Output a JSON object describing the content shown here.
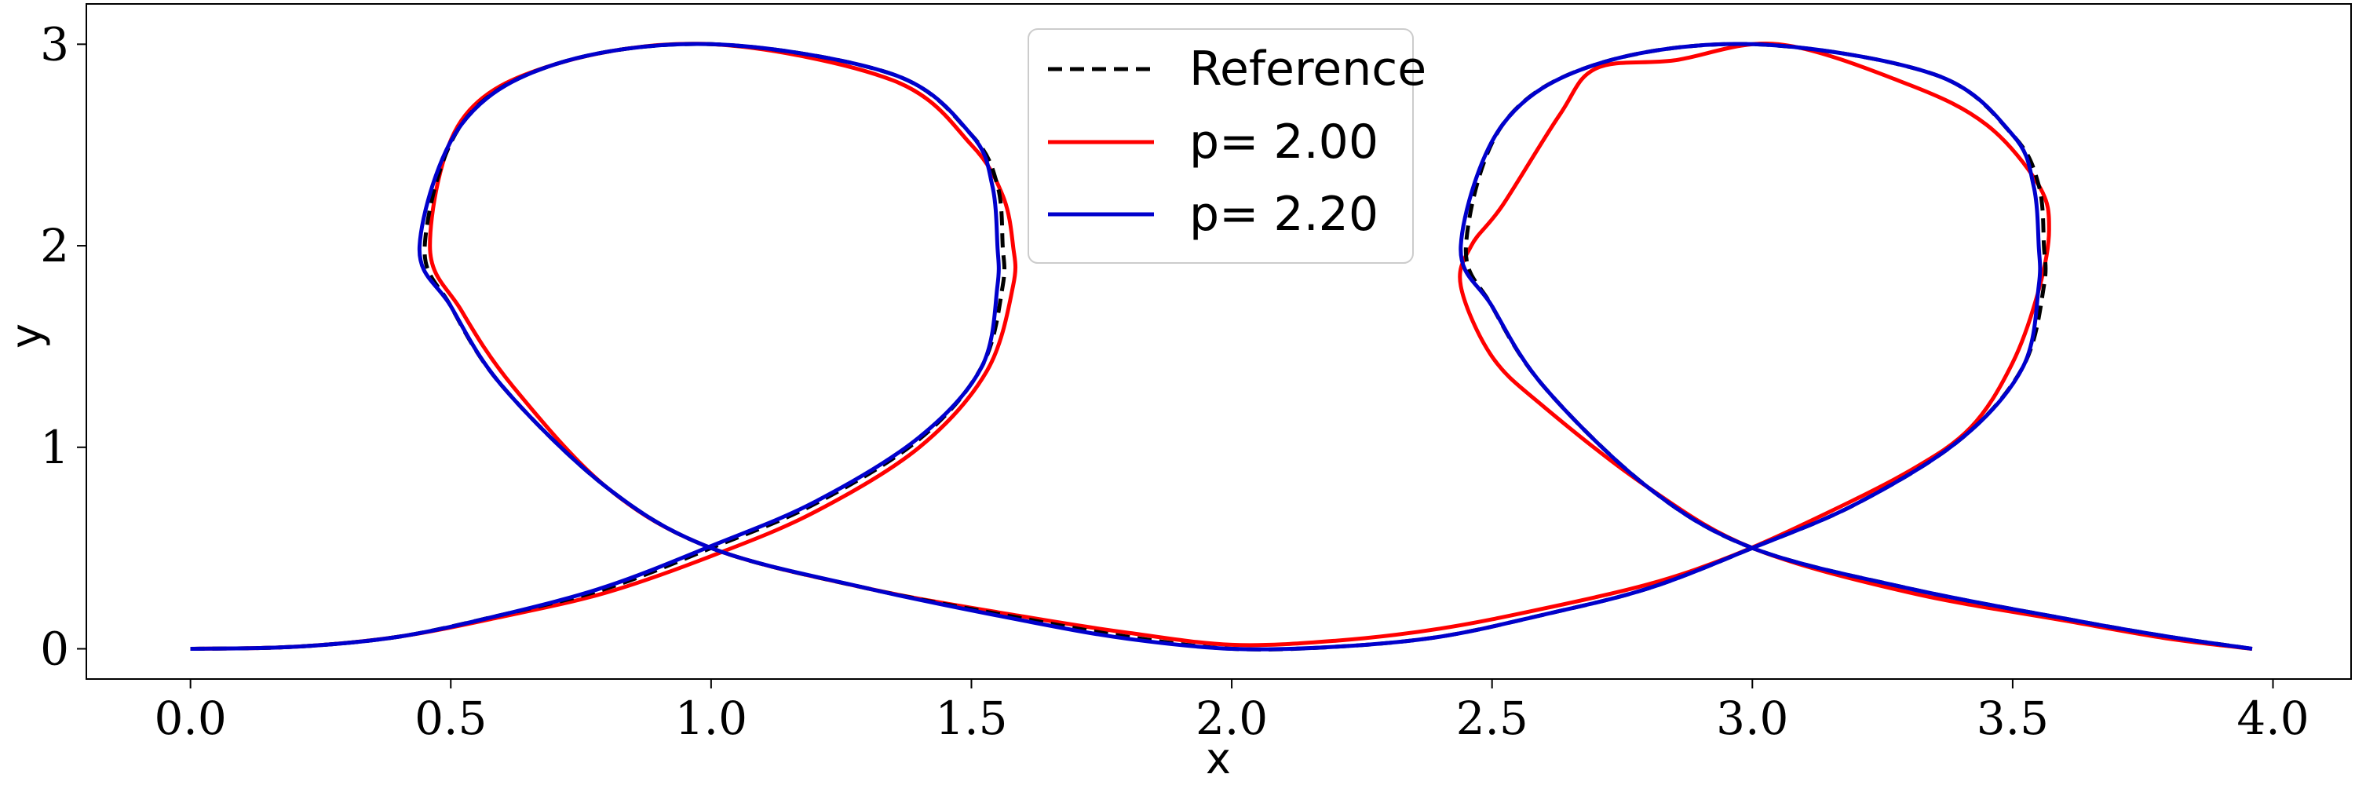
{
  "chart_data": {
    "type": "line",
    "title": "",
    "xlabel": "x",
    "ylabel": "y",
    "xlim": [
      -0.2,
      4.15
    ],
    "ylim": [
      -0.15,
      3.2
    ],
    "xticks": [
      "0.0",
      "0.5",
      "1.0",
      "1.5",
      "2.0",
      "2.5",
      "3.0",
      "3.5",
      "4.0"
    ],
    "yticks": [
      "0",
      "1",
      "2",
      "3"
    ],
    "grid": false,
    "legend_position": "top-center",
    "series": [
      {
        "name": "Reference",
        "color": "#000000",
        "style": "dashed",
        "points": [
          [
            0.0,
            0.0
          ],
          [
            0.2,
            0.01
          ],
          [
            0.4,
            0.06
          ],
          [
            0.6,
            0.17
          ],
          [
            0.8,
            0.3
          ],
          [
            1.0,
            0.5
          ],
          [
            1.2,
            0.72
          ],
          [
            1.4,
            1.04
          ],
          [
            1.52,
            1.4
          ],
          [
            1.56,
            1.8
          ],
          [
            1.56,
            2.0
          ],
          [
            1.55,
            2.3
          ],
          [
            1.5,
            2.55
          ],
          [
            1.35,
            2.85
          ],
          [
            1.0,
            3.0
          ],
          [
            0.7,
            2.9
          ],
          [
            0.52,
            2.6
          ],
          [
            0.45,
            2.0
          ],
          [
            0.5,
            1.7
          ],
          [
            0.6,
            1.3
          ],
          [
            0.8,
            0.8
          ],
          [
            1.0,
            0.5
          ],
          [
            1.3,
            0.3
          ],
          [
            1.6,
            0.15
          ],
          [
            1.8,
            0.06
          ],
          [
            2.0,
            0.0
          ],
          [
            2.2,
            0.01
          ],
          [
            2.4,
            0.06
          ],
          [
            2.6,
            0.17
          ],
          [
            2.8,
            0.3
          ],
          [
            3.0,
            0.5
          ],
          [
            3.2,
            0.72
          ],
          [
            3.4,
            1.04
          ],
          [
            3.52,
            1.4
          ],
          [
            3.56,
            1.8
          ],
          [
            3.56,
            2.0
          ],
          [
            3.55,
            2.3
          ],
          [
            3.5,
            2.55
          ],
          [
            3.35,
            2.85
          ],
          [
            3.0,
            3.0
          ],
          [
            2.7,
            2.9
          ],
          [
            2.52,
            2.6
          ],
          [
            2.45,
            2.0
          ],
          [
            2.5,
            1.7
          ],
          [
            2.6,
            1.3
          ],
          [
            2.8,
            0.8
          ],
          [
            3.0,
            0.5
          ],
          [
            3.3,
            0.3
          ],
          [
            3.6,
            0.15
          ],
          [
            3.8,
            0.06
          ],
          [
            3.96,
            0.0
          ]
        ]
      },
      {
        "name": "p= 2.00",
        "color": "#ff0000",
        "style": "solid",
        "points": [
          [
            0.0,
            0.0
          ],
          [
            0.2,
            0.01
          ],
          [
            0.4,
            0.06
          ],
          [
            0.6,
            0.16
          ],
          [
            0.8,
            0.28
          ],
          [
            1.0,
            0.46
          ],
          [
            1.2,
            0.68
          ],
          [
            1.4,
            1.0
          ],
          [
            1.53,
            1.38
          ],
          [
            1.58,
            1.8
          ],
          [
            1.58,
            2.0
          ],
          [
            1.56,
            2.25
          ],
          [
            1.5,
            2.5
          ],
          [
            1.35,
            2.82
          ],
          [
            1.0,
            3.0
          ],
          [
            0.7,
            2.9
          ],
          [
            0.52,
            2.62
          ],
          [
            0.46,
            2.0
          ],
          [
            0.52,
            1.68
          ],
          [
            0.62,
            1.3
          ],
          [
            0.8,
            0.8
          ],
          [
            1.0,
            0.5
          ],
          [
            1.3,
            0.3
          ],
          [
            1.6,
            0.16
          ],
          [
            1.8,
            0.08
          ],
          [
            2.0,
            0.02
          ],
          [
            2.2,
            0.04
          ],
          [
            2.4,
            0.1
          ],
          [
            2.6,
            0.2
          ],
          [
            2.8,
            0.32
          ],
          [
            2.95,
            0.45
          ],
          [
            3.1,
            0.62
          ],
          [
            3.3,
            0.88
          ],
          [
            3.42,
            1.1
          ],
          [
            3.5,
            1.42
          ],
          [
            3.55,
            1.78
          ],
          [
            3.57,
            2.08
          ],
          [
            3.55,
            2.3
          ],
          [
            3.45,
            2.6
          ],
          [
            3.3,
            2.8
          ],
          [
            3.05,
            3.0
          ],
          [
            2.85,
            2.92
          ],
          [
            2.7,
            2.88
          ],
          [
            2.63,
            2.65
          ],
          [
            2.52,
            2.2
          ],
          [
            2.46,
            2.0
          ],
          [
            2.44,
            1.8
          ],
          [
            2.5,
            1.45
          ],
          [
            2.6,
            1.2
          ],
          [
            2.8,
            0.8
          ],
          [
            3.0,
            0.5
          ],
          [
            3.3,
            0.28
          ],
          [
            3.6,
            0.14
          ],
          [
            3.8,
            0.05
          ],
          [
            3.96,
            0.0
          ]
        ]
      },
      {
        "name": "p= 2.20",
        "color": "#0000cc",
        "style": "solid",
        "points": [
          [
            0.0,
            0.0
          ],
          [
            0.2,
            0.01
          ],
          [
            0.4,
            0.06
          ],
          [
            0.6,
            0.17
          ],
          [
            0.8,
            0.31
          ],
          [
            1.0,
            0.51
          ],
          [
            1.2,
            0.73
          ],
          [
            1.4,
            1.05
          ],
          [
            1.52,
            1.4
          ],
          [
            1.55,
            1.8
          ],
          [
            1.55,
            2.0
          ],
          [
            1.54,
            2.3
          ],
          [
            1.5,
            2.55
          ],
          [
            1.35,
            2.85
          ],
          [
            1.0,
            3.0
          ],
          [
            0.7,
            2.9
          ],
          [
            0.52,
            2.6
          ],
          [
            0.44,
            2.0
          ],
          [
            0.5,
            1.7
          ],
          [
            0.6,
            1.3
          ],
          [
            0.8,
            0.8
          ],
          [
            1.0,
            0.5
          ],
          [
            1.3,
            0.3
          ],
          [
            1.6,
            0.14
          ],
          [
            1.8,
            0.05
          ],
          [
            2.0,
            0.0
          ],
          [
            2.2,
            0.01
          ],
          [
            2.4,
            0.06
          ],
          [
            2.6,
            0.17
          ],
          [
            2.8,
            0.3
          ],
          [
            3.0,
            0.5
          ],
          [
            3.2,
            0.72
          ],
          [
            3.4,
            1.04
          ],
          [
            3.52,
            1.4
          ],
          [
            3.55,
            1.8
          ],
          [
            3.55,
            2.0
          ],
          [
            3.54,
            2.3
          ],
          [
            3.5,
            2.55
          ],
          [
            3.35,
            2.85
          ],
          [
            3.0,
            3.0
          ],
          [
            2.7,
            2.9
          ],
          [
            2.52,
            2.6
          ],
          [
            2.44,
            2.0
          ],
          [
            2.5,
            1.7
          ],
          [
            2.6,
            1.3
          ],
          [
            2.8,
            0.8
          ],
          [
            3.0,
            0.5
          ],
          [
            3.3,
            0.3
          ],
          [
            3.6,
            0.15
          ],
          [
            3.8,
            0.06
          ],
          [
            3.96,
            0.0
          ]
        ]
      }
    ]
  }
}
